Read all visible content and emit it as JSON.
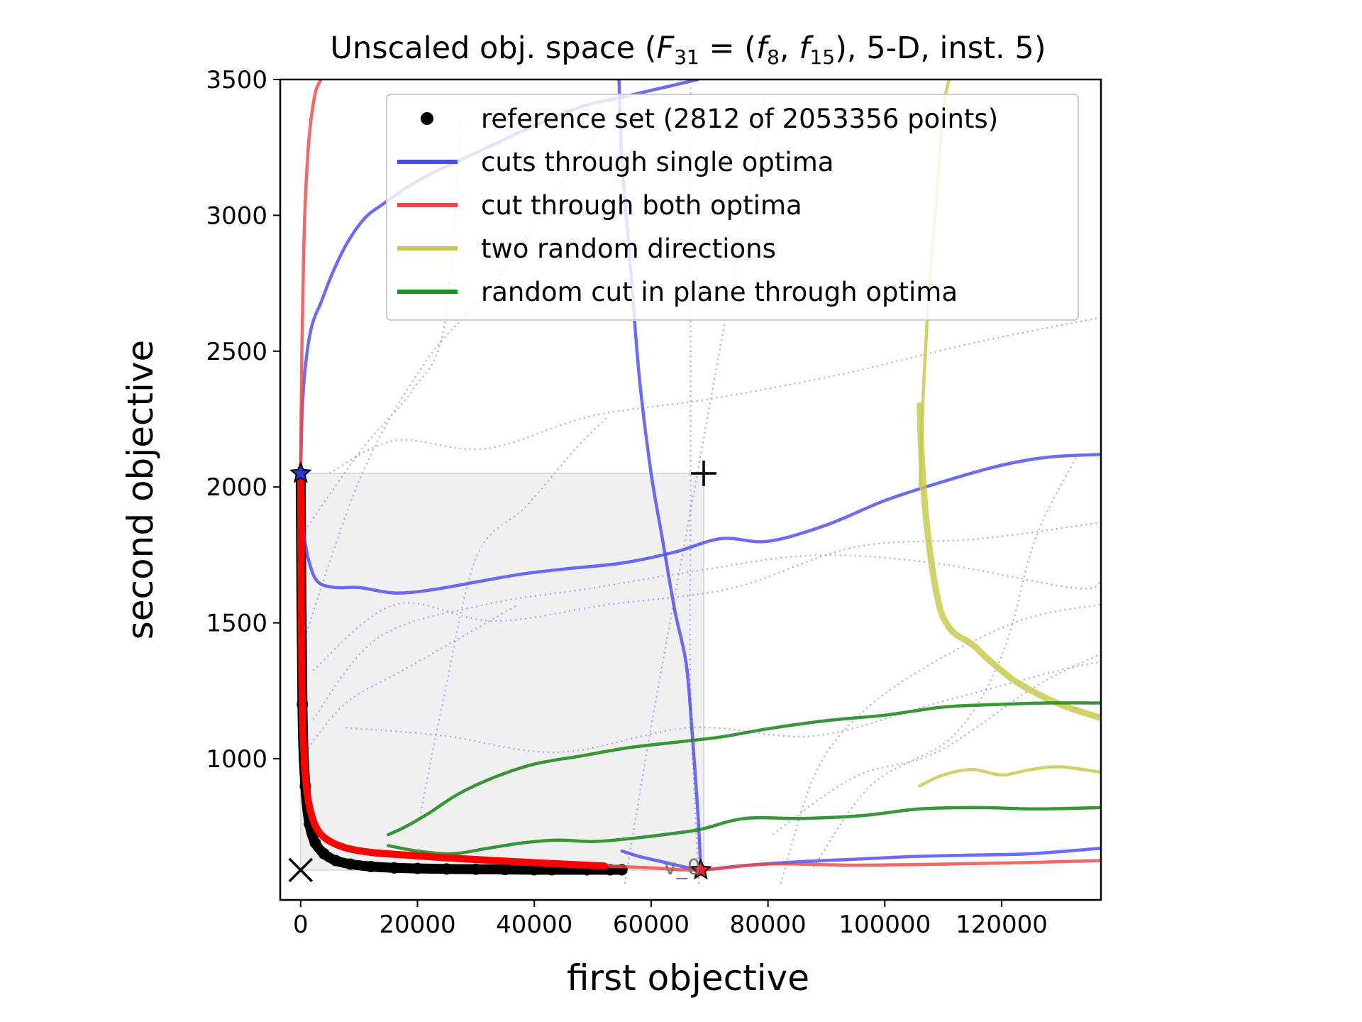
{
  "chart_data": {
    "type": "line",
    "title": "Unscaled obj. space (F31 = (f8, f15), 5-D, inst. 5)",
    "xlabel": "first objective",
    "ylabel": "second objective",
    "xlim": [
      -3500,
      137000
    ],
    "ylim": [
      480,
      3500
    ],
    "xticks": [
      0,
      20000,
      40000,
      60000,
      80000,
      100000,
      120000
    ],
    "yticks": [
      1000,
      1500,
      2000,
      2500,
      3000,
      3500
    ],
    "grid": false,
    "legend_position": "top-right",
    "colors": {
      "reference": "#000000",
      "single_optima": "#4b4bf5",
      "both_optima": "#f04545",
      "random_dirs": "#c8c84a",
      "plane_cut": "#228b22",
      "dotted": "#8a8af0",
      "region": "#f0f0f0"
    },
    "legend": [
      {
        "label": "reference set (2812 of 2053356 points)",
        "kind": "dot",
        "color": "#000000"
      },
      {
        "label": "cuts through single optima",
        "kind": "line",
        "color": "#4b4bf5"
      },
      {
        "label": "cut through both optima",
        "kind": "line",
        "color": "#f04545"
      },
      {
        "label": "two random directions",
        "kind": "line",
        "color": "#c8c84a"
      },
      {
        "label": "random cut in plane through optima",
        "kind": "line",
        "color": "#228b22"
      }
    ],
    "annotations": {
      "nadir_marker": {
        "symbol": "+",
        "x": 69000,
        "y": 2050
      },
      "ideal_marker": {
        "symbol": "×",
        "x": 0,
        "y": 590
      },
      "optimum_1": {
        "x": 0,
        "y": 2050
      },
      "optimum_2": {
        "x": 68500,
        "y": 590
      },
      "label_near_optimum_2": "v_0"
    },
    "region": {
      "x": [
        0,
        69000
      ],
      "y": [
        590,
        2050
      ]
    },
    "series": [
      {
        "group": "reference",
        "x": [
          0,
          300,
          800,
          1500,
          2500,
          4000,
          6000,
          8500,
          12000,
          16000,
          20000,
          25000,
          30000,
          35000,
          40000,
          43000,
          49000,
          53000,
          55000
        ],
        "y": [
          2050,
          1200,
          900,
          760,
          690,
          650,
          625,
          612,
          603,
          598,
          596,
          594,
          593,
          592,
          591,
          591,
          591,
          591,
          591
        ]
      },
      {
        "group": "single_optima",
        "x": [
          0,
          500,
          1500,
          3000,
          6000,
          10000,
          16000,
          22000,
          30000,
          38000,
          46000,
          55000,
          64000,
          72000,
          80000,
          90000,
          100000,
          110000,
          120000,
          128000,
          137000
        ],
        "y": [
          2050,
          1840,
          1720,
          1650,
          1630,
          1630,
          1610,
          1620,
          1650,
          1680,
          1700,
          1720,
          1760,
          1810,
          1800,
          1860,
          1950,
          2020,
          2080,
          2110,
          2120
        ]
      },
      {
        "group": "single_optima",
        "x": [
          0,
          300,
          1000,
          2000,
          3500,
          5500,
          8000,
          11000,
          14000,
          18000,
          22000,
          27000,
          33000,
          40000,
          48000,
          56000,
          62000,
          68000
        ],
        "y": [
          2050,
          2300,
          2480,
          2600,
          2680,
          2790,
          2900,
          2990,
          3040,
          3100,
          3150,
          3200,
          3260,
          3330,
          3400,
          3440,
          3470,
          3500
        ]
      },
      {
        "group": "single_optima",
        "x": [
          68500,
          68000,
          67000,
          66000,
          64000,
          62000,
          60000,
          58000,
          56500,
          55000,
          54500
        ],
        "y": [
          590,
          800,
          1100,
          1350,
          1550,
          1800,
          2050,
          2400,
          2800,
          3200,
          3500
        ]
      },
      {
        "group": "single_optima",
        "x": [
          55000,
          58000,
          62000,
          66000,
          68500,
          75000,
          85000,
          95000,
          105000,
          115000,
          125000,
          137000
        ],
        "y": [
          660,
          640,
          620,
          600,
          590,
          605,
          620,
          630,
          640,
          645,
          650,
          670
        ]
      },
      {
        "group": "both_optima",
        "x": [
          0,
          200,
          600,
          1200,
          2200,
          3500,
          5500,
          8000,
          12000,
          18000,
          25000,
          33000,
          42000,
          52000,
          60000,
          68500,
          80000,
          95000,
          110000,
          125000,
          137000
        ],
        "y": [
          2050,
          1300,
          1000,
          860,
          770,
          720,
          690,
          670,
          655,
          645,
          635,
          625,
          615,
          605,
          598,
          590,
          612,
          608,
          612,
          618,
          625
        ]
      },
      {
        "group": "both_optima",
        "x": [
          0,
          200,
          500,
          900,
          1500,
          2500,
          3500
        ],
        "y": [
          2050,
          2500,
          2850,
          3100,
          3300,
          3450,
          3500
        ]
      },
      {
        "group": "random_dirs",
        "x": [
          106000,
          106200,
          106800,
          107500,
          108500,
          109500,
          110500,
          112000,
          115000,
          118000,
          122000,
          126000,
          130000,
          134000,
          137000
        ],
        "y": [
          2300,
          2150,
          1950,
          1800,
          1650,
          1550,
          1500,
          1460,
          1420,
          1360,
          1290,
          1240,
          1200,
          1170,
          1150
        ]
      },
      {
        "group": "random_dirs",
        "x": [
          106000,
          106500,
          107200,
          108000,
          108800,
          109500,
          110200,
          111000
        ],
        "y": [
          2000,
          2300,
          2600,
          2850,
          3050,
          3250,
          3420,
          3500
        ]
      },
      {
        "group": "random_dirs",
        "x": [
          106000,
          110000,
          115000,
          120000,
          125000,
          130000,
          137000
        ],
        "y": [
          900,
          940,
          960,
          940,
          960,
          970,
          950
        ]
      },
      {
        "group": "plane_cut",
        "x": [
          15000,
          18000,
          22000,
          27000,
          33000,
          40000,
          48000,
          56000,
          64000,
          72000,
          80000,
          90000,
          100000,
          110000,
          120000,
          128000,
          137000
        ],
        "y": [
          720,
          750,
          800,
          870,
          930,
          980,
          1010,
          1040,
          1060,
          1080,
          1110,
          1140,
          1160,
          1190,
          1200,
          1205,
          1205
        ]
      },
      {
        "group": "plane_cut",
        "x": [
          15000,
          20000,
          26000,
          32000,
          38000,
          44000,
          50000,
          56000,
          62000,
          68500,
          76000,
          86000,
          96000,
          106000,
          116000,
          126000,
          137000
        ],
        "y": [
          680,
          660,
          650,
          670,
          690,
          700,
          695,
          705,
          720,
          740,
          780,
          780,
          790,
          815,
          820,
          815,
          820
        ]
      }
    ]
  }
}
